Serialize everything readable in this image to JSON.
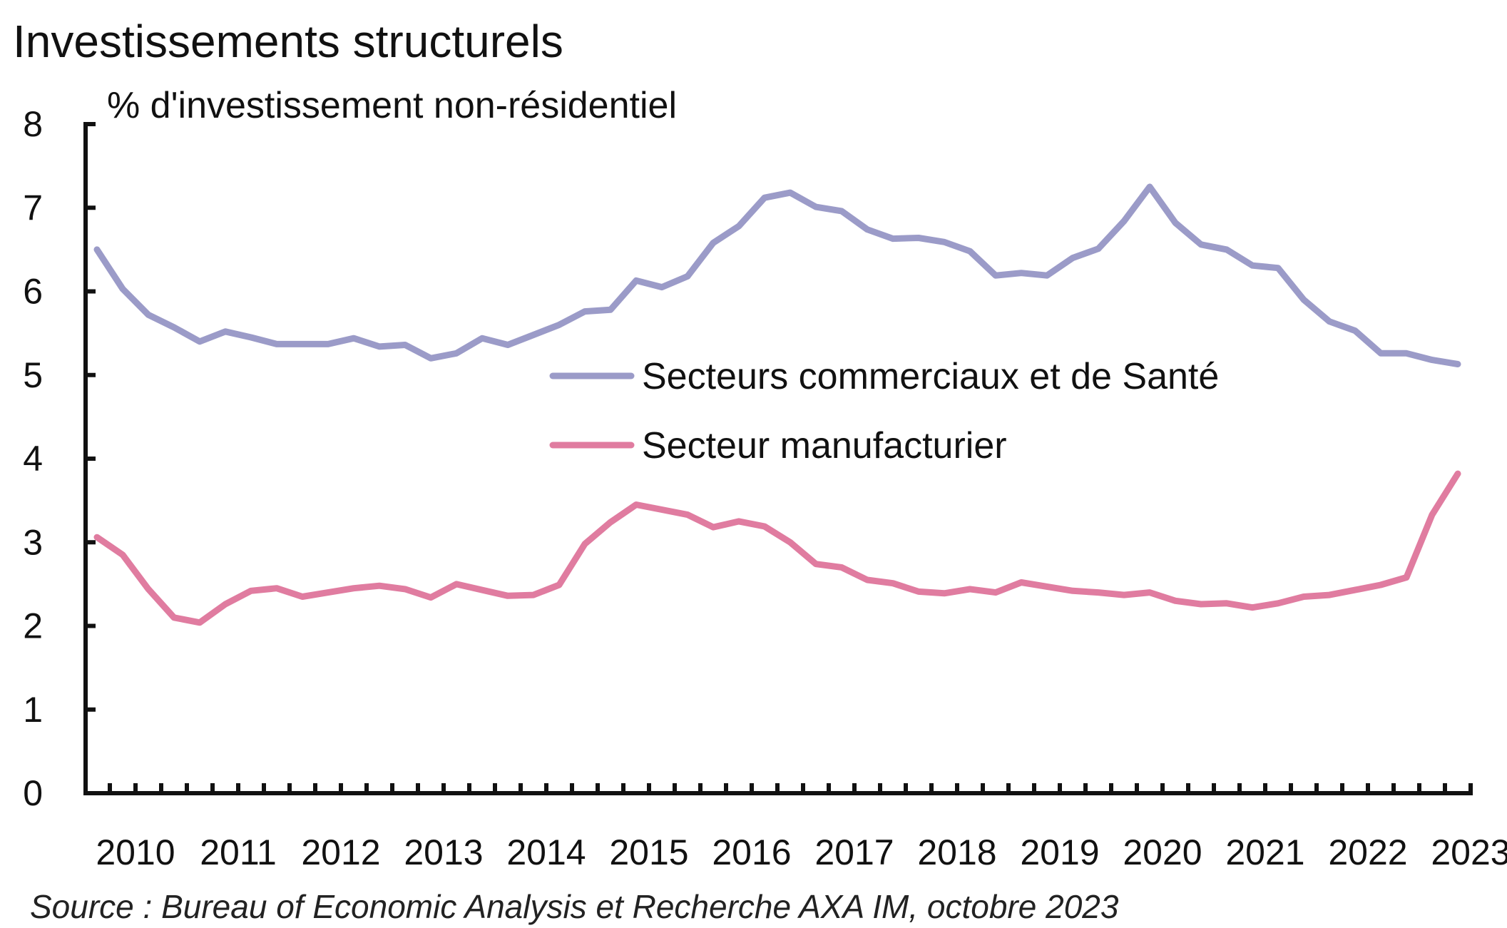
{
  "chart_data": {
    "type": "line",
    "title": "Investissements structurels",
    "ylabel": "% d'investissement non-résidentiel",
    "xlabel": "",
    "ylim": [
      0,
      8
    ],
    "yticks": [
      0,
      1,
      2,
      3,
      4,
      5,
      6,
      7,
      8
    ],
    "x_tick_labels": [
      "2010",
      "2011",
      "2012",
      "2013",
      "2014",
      "2015",
      "2016",
      "2017",
      "2018",
      "2019",
      "2020",
      "2021",
      "2022",
      "2023"
    ],
    "frequency": "quarterly",
    "x": [
      "2010 Q1",
      "2010 Q2",
      "2010 Q3",
      "2010 Q4",
      "2011 Q1",
      "2011 Q2",
      "2011 Q3",
      "2011 Q4",
      "2012 Q1",
      "2012 Q2",
      "2012 Q3",
      "2012 Q4",
      "2013 Q1",
      "2013 Q2",
      "2013 Q3",
      "2013 Q4",
      "2014 Q1",
      "2014 Q2",
      "2014 Q3",
      "2014 Q4",
      "2015 Q1",
      "2015 Q2",
      "2015 Q3",
      "2015 Q4",
      "2016 Q1",
      "2016 Q2",
      "2016 Q3",
      "2016 Q4",
      "2017 Q1",
      "2017 Q2",
      "2017 Q3",
      "2017 Q4",
      "2018 Q1",
      "2018 Q2",
      "2018 Q3",
      "2018 Q4",
      "2019 Q1",
      "2019 Q2",
      "2019 Q3",
      "2019 Q4",
      "2020 Q1",
      "2020 Q2",
      "2020 Q3",
      "2020 Q4",
      "2021 Q1",
      "2021 Q2",
      "2021 Q3",
      "2021 Q4",
      "2022 Q1",
      "2022 Q2",
      "2022 Q3",
      "2022 Q4",
      "2023 Q1",
      "2023 Q2"
    ],
    "grid": false,
    "legend_position": "center-right",
    "series": [
      {
        "name": "Secteurs commerciaux et de Santé",
        "color": "#9b9bc8",
        "values": [
          6.5,
          6.03,
          5.72,
          5.57,
          5.4,
          5.52,
          5.45,
          5.37,
          5.37,
          5.37,
          5.44,
          5.34,
          5.36,
          5.2,
          5.26,
          5.44,
          5.36,
          5.48,
          5.6,
          5.76,
          5.78,
          6.13,
          6.05,
          6.18,
          6.58,
          6.78,
          7.12,
          7.18,
          7.01,
          6.96,
          6.74,
          6.63,
          6.64,
          6.59,
          6.48,
          6.19,
          6.22,
          6.19,
          6.4,
          6.51,
          6.84,
          7.25,
          6.82,
          6.56,
          6.5,
          6.31,
          6.28,
          5.9,
          5.64,
          5.53,
          5.26,
          5.26,
          5.18,
          5.13
        ]
      },
      {
        "name": "Secteur manufacturier",
        "color": "#e07ca0",
        "values": [
          3.06,
          2.85,
          2.44,
          2.1,
          2.04,
          2.26,
          2.42,
          2.45,
          2.35,
          2.4,
          2.45,
          2.48,
          2.44,
          2.34,
          2.5,
          2.43,
          2.36,
          2.37,
          2.49,
          2.98,
          3.24,
          3.45,
          3.39,
          3.33,
          3.18,
          3.25,
          3.19,
          3.0,
          2.74,
          2.7,
          2.55,
          2.51,
          2.41,
          2.39,
          2.44,
          2.4,
          2.52,
          2.47,
          2.42,
          2.4,
          2.37,
          2.4,
          2.3,
          2.26,
          2.27,
          2.22,
          2.27,
          2.35,
          2.37,
          2.43,
          2.49,
          2.58,
          3.33,
          3.82
        ]
      }
    ],
    "source": "Source : Bureau of Economic Analysis et Recherche AXA IM, octobre 2023"
  }
}
